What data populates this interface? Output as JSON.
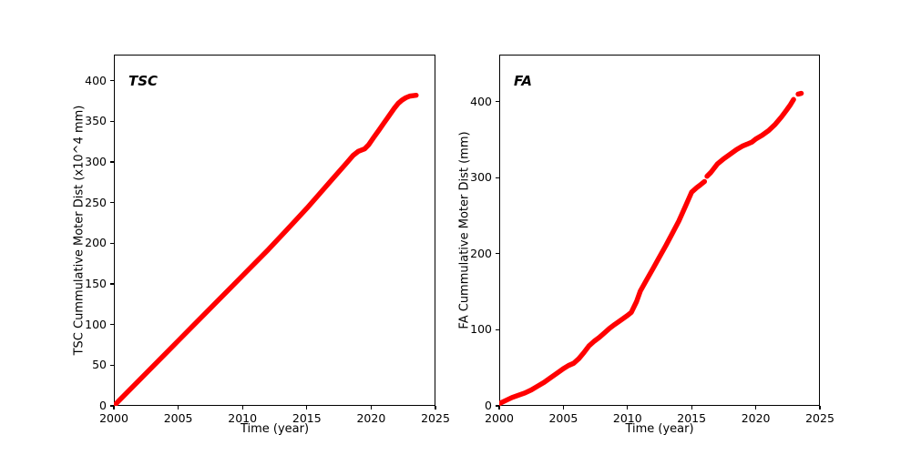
{
  "figure": {
    "background": "#ffffff",
    "text_color": "#000000"
  },
  "chart_data": [
    {
      "type": "line",
      "title": "TSC",
      "xlabel": "Time (year)",
      "ylabel": "TSC Cummulative Moter Dist (x10^4 mm)",
      "xlim": [
        2000,
        2025
      ],
      "ylim": [
        0,
        432
      ],
      "xticks": [
        2000,
        2005,
        2010,
        2015,
        2020,
        2025
      ],
      "yticks": [
        0,
        50,
        100,
        150,
        200,
        250,
        300,
        350,
        400
      ],
      "grid": false,
      "line_color": "#ff0000",
      "line_width": 5.5,
      "series": [
        {
          "segments": [
            [
              [
                2000,
                0
              ],
              [
                2001,
                16
              ],
              [
                2002,
                32
              ],
              [
                2003,
                48
              ],
              [
                2004,
                64
              ],
              [
                2005,
                80
              ],
              [
                2006,
                96
              ],
              [
                2007,
                112
              ],
              [
                2008,
                128
              ],
              [
                2009,
                144
              ],
              [
                2010,
                160
              ],
              [
                2011,
                176
              ],
              [
                2012,
                192
              ],
              [
                2013,
                209
              ],
              [
                2014,
                226
              ],
              [
                2015,
                243
              ],
              [
                2016,
                261
              ],
              [
                2017,
                279
              ],
              [
                2018,
                297
              ],
              [
                2018.6,
                308
              ],
              [
                2019,
                313
              ],
              [
                2019.5,
                316
              ],
              [
                2019.8,
                321
              ],
              [
                2020.2,
                330
              ],
              [
                2020.6,
                339
              ],
              [
                2021,
                348
              ],
              [
                2021.4,
                357
              ],
              [
                2021.8,
                366
              ],
              [
                2022.1,
                372
              ],
              [
                2022.4,
                376
              ],
              [
                2022.7,
                379
              ],
              [
                2023,
                381
              ],
              [
                2023.5,
                382
              ]
            ]
          ]
        }
      ]
    },
    {
      "type": "line",
      "title": "FA",
      "xlabel": "Time (year)",
      "ylabel": "FA Cummulative Moter Dist (mm)",
      "xlim": [
        2000,
        2025
      ],
      "ylim": [
        0,
        462
      ],
      "xticks": [
        2000,
        2005,
        2010,
        2015,
        2020,
        2025
      ],
      "yticks": [
        0,
        100,
        200,
        300,
        400
      ],
      "grid": false,
      "line_color": "#ff0000",
      "line_width": 5.5,
      "series": [
        {
          "segments": [
            [
              [
                2000,
                3
              ],
              [
                2000.5,
                7
              ],
              [
                2001,
                11
              ],
              [
                2001.5,
                14
              ],
              [
                2002,
                17
              ],
              [
                2002.5,
                21
              ],
              [
                2003,
                26
              ],
              [
                2003.5,
                31
              ],
              [
                2004,
                37
              ],
              [
                2004.5,
                43
              ],
              [
                2005,
                49
              ],
              [
                2005.4,
                53
              ],
              [
                2005.8,
                56
              ],
              [
                2006.2,
                62
              ],
              [
                2006.6,
                70
              ],
              [
                2007,
                79
              ],
              [
                2007.4,
                85
              ],
              [
                2007.8,
                90
              ],
              [
                2008.2,
                96
              ],
              [
                2008.6,
                102
              ],
              [
                2009,
                107
              ],
              [
                2009.5,
                113
              ],
              [
                2010,
                119
              ],
              [
                2010.3,
                123
              ],
              [
                2010.7,
                137
              ],
              [
                2011,
                151
              ],
              [
                2011.5,
                166
              ],
              [
                2012,
                181
              ],
              [
                2012.5,
                196
              ],
              [
                2013,
                211
              ],
              [
                2013.5,
                227
              ],
              [
                2014,
                243
              ],
              [
                2014.5,
                262
              ],
              [
                2015,
                281
              ],
              [
                2015.4,
                287
              ],
              [
                2015.7,
                291
              ],
              [
                2016,
                295
              ]
            ],
            [
              [
                2016.2,
                302
              ],
              [
                2016.5,
                307
              ],
              [
                2017,
                318
              ],
              [
                2017.5,
                325
              ],
              [
                2018,
                331
              ],
              [
                2018.5,
                337
              ],
              [
                2019,
                342
              ],
              [
                2019.3,
                344
              ],
              [
                2019.7,
                347
              ],
              [
                2020,
                351
              ],
              [
                2020.5,
                356
              ],
              [
                2021,
                362
              ],
              [
                2021.5,
                370
              ],
              [
                2022,
                380
              ],
              [
                2022.4,
                389
              ],
              [
                2022.7,
                396
              ],
              [
                2022.95,
                403
              ]
            ],
            [
              [
                2023.3,
                410
              ],
              [
                2023.55,
                411
              ]
            ]
          ]
        }
      ]
    }
  ]
}
